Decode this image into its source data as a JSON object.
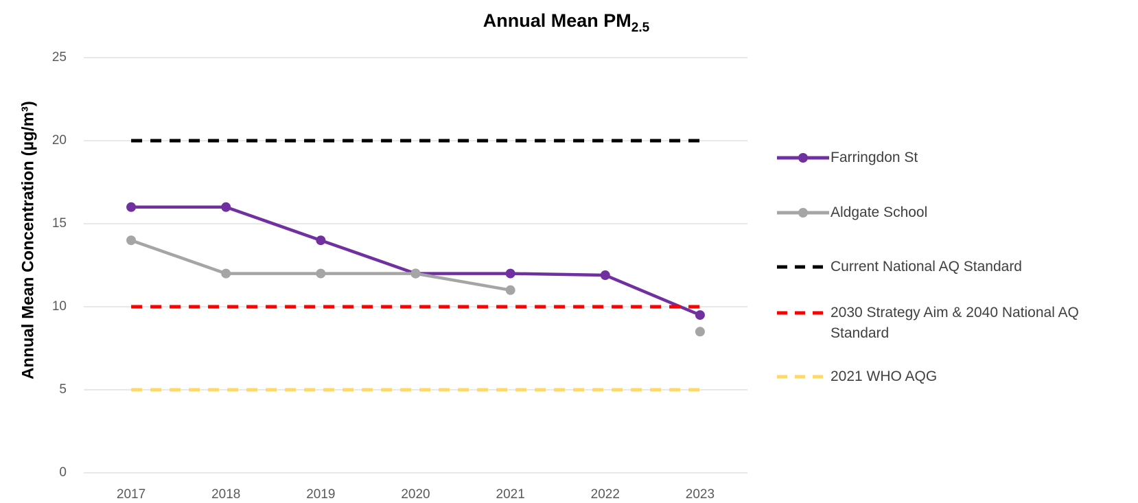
{
  "chart_data": {
    "type": "line",
    "title": "Annual Mean PM",
    "title_subscript": "2.5",
    "y_label": "Annual Mean Concentration (µg/m³)",
    "categories": [
      "2017",
      "2018",
      "2019",
      "2020",
      "2021",
      "2022",
      "2023"
    ],
    "ylim": [
      0,
      25
    ],
    "yticks": [
      0,
      5,
      10,
      15,
      20,
      25
    ],
    "grid": true,
    "legend": "right",
    "series": [
      {
        "name": "Farringdon St",
        "color": "#7030a0",
        "style": "solid",
        "markers": true,
        "values": [
          16,
          16,
          14,
          12,
          12,
          11.9,
          9.5
        ]
      },
      {
        "name": "Aldgate School",
        "color": "#a5a5a5",
        "style": "solid",
        "markers": true,
        "values": [
          14,
          12,
          12,
          12,
          11,
          null,
          8.5
        ]
      },
      {
        "name": "Current National AQ Standard",
        "color": "#000000",
        "style": "dashed",
        "markers": false,
        "values": [
          20,
          20,
          20,
          20,
          20,
          20,
          20
        ]
      },
      {
        "name": "2030 Strategy Aim & 2040 National AQ Standard",
        "color": "#ff0000",
        "style": "dashed",
        "markers": false,
        "values": [
          10,
          10,
          10,
          10,
          10,
          10,
          10
        ]
      },
      {
        "name": "2021 WHO AQG",
        "color": "#ffd966",
        "style": "dashed",
        "markers": false,
        "values": [
          5,
          5,
          5,
          5,
          5,
          5,
          5
        ]
      }
    ]
  }
}
